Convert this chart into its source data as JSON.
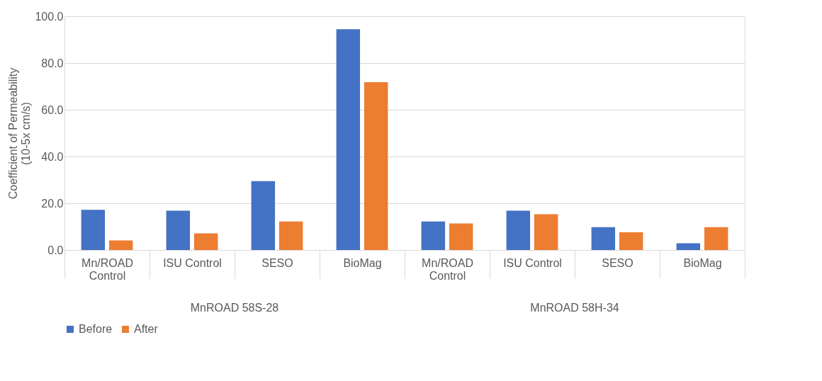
{
  "chart_data": {
    "type": "bar",
    "ylabel": "Coefficient of Permeability\n(10-5x cm/s)",
    "categories": [
      "Mn/ROAD Control",
      "ISU Control",
      "SESO",
      "BioMag",
      "Mn/ROAD Control",
      "ISU Control",
      "SESO",
      "BioMag"
    ],
    "series": [
      {
        "name": "Before",
        "color": "#4472c4",
        "values": [
          17.2,
          16.8,
          29.5,
          94.5,
          12.2,
          16.8,
          9.8,
          2.9
        ]
      },
      {
        "name": "After",
        "color": "#ed7d31",
        "values": [
          4.1,
          7.1,
          12.2,
          71.8,
          11.4,
          15.3,
          7.6,
          9.8
        ]
      }
    ],
    "ylim": [
      0,
      100
    ],
    "yticks": [
      {
        "value": 0,
        "label": "0.0"
      },
      {
        "value": 20,
        "label": "20.0"
      },
      {
        "value": 40,
        "label": "40.0"
      },
      {
        "value": 60,
        "label": "60.0"
      },
      {
        "value": 80,
        "label": "80.0"
      },
      {
        "value": 100,
        "label": "100.0"
      }
    ],
    "annotations": [
      "MnROAD 58S-28",
      "MnROAD 58H-34"
    ],
    "grid": "y",
    "legend": "bottom"
  }
}
